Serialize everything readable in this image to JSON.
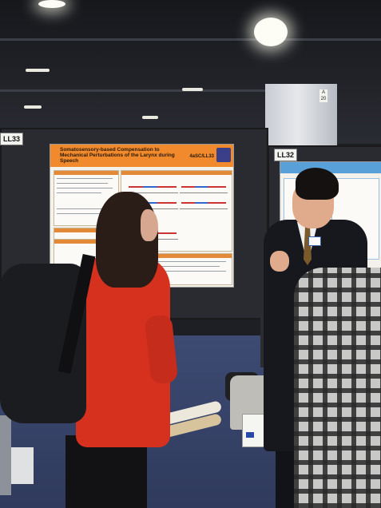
{
  "photo": {
    "left_board": {
      "tag": "LL33"
    },
    "right_board": {
      "tag": "LL32"
    },
    "left_poster": {
      "title_line1": "Somatosensory-based Compensation to",
      "title_line2": "Mechanical Perturbations of the Larynx during Speech",
      "poster_number": "4aSC/LL33",
      "header_color": "#f08a2c"
    },
    "column_sign": "A 20",
    "colors": {
      "carpet": "#3d4a72",
      "red_top": "#d6311f",
      "suit": "#16181e"
    }
  }
}
